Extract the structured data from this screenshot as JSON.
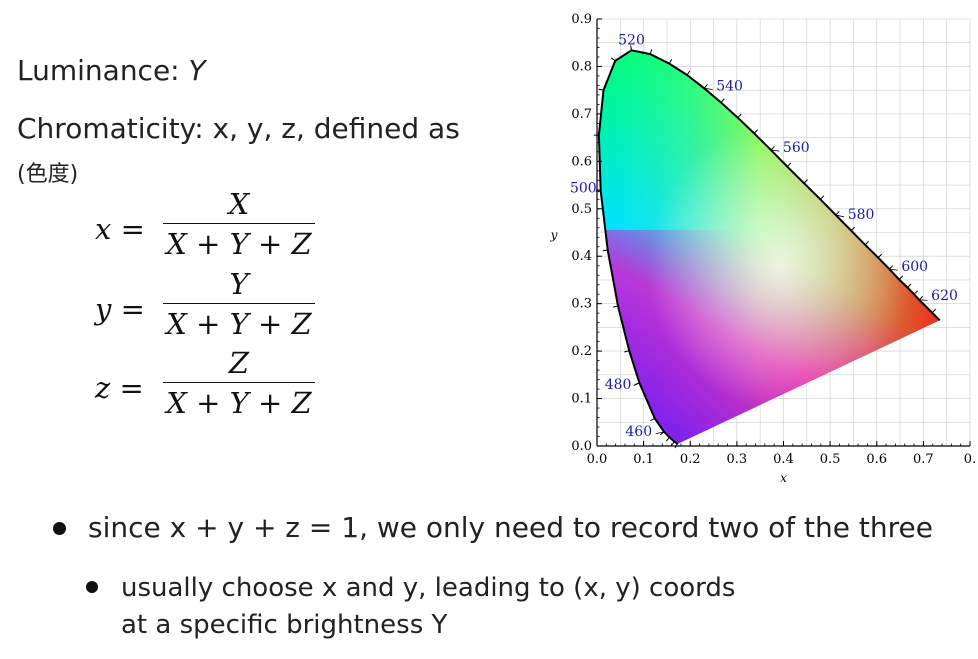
{
  "text": {
    "luminance_prefix": "Luminance: ",
    "luminance_var": "Y",
    "chromaticity": "Chromaticity: x, y, z, defined as",
    "cjk": "(色度)",
    "bullet1": "since x + y + z = 1, we only need to record two of the three",
    "bullet2_line1": "usually choose x and y, leading to (x, y) coords",
    "bullet2_line2": "at a specific brightness Y"
  },
  "equations": [
    {
      "lhs": "x =",
      "numerator": "X",
      "denominator": "X + Y + Z"
    },
    {
      "lhs": "y =",
      "numerator": "Y",
      "denominator": "X + Y + Z"
    },
    {
      "lhs": "z =",
      "numerator": "Z",
      "denominator": "X + Y + Z"
    }
  ],
  "chart_data": {
    "type": "scatter",
    "title": "",
    "xlabel": "x",
    "ylabel": "y",
    "xlim": [
      0,
      0.8
    ],
    "ylim": [
      0,
      0.9
    ],
    "x_ticks": [
      "0.0",
      "0.1",
      "0.2",
      "0.3",
      "0.4",
      "0.5",
      "0.6",
      "0.7",
      "0."
    ],
    "y_ticks": [
      "0.0",
      "0.1",
      "0.2",
      "0.3",
      "0.4",
      "0.5",
      "0.6",
      "0.7",
      "0.8",
      "0.9"
    ],
    "grid": true,
    "wavelength_labels": [
      {
        "label": "460",
        "x": 0.144,
        "y": 0.03
      },
      {
        "label": "480",
        "x": 0.091,
        "y": 0.133
      },
      {
        "label": "500",
        "x": 0.008,
        "y": 0.538
      },
      {
        "label": "520",
        "x": 0.074,
        "y": 0.834
      },
      {
        "label": "540",
        "x": 0.23,
        "y": 0.754
      },
      {
        "label": "560",
        "x": 0.373,
        "y": 0.624
      },
      {
        "label": "580",
        "x": 0.512,
        "y": 0.487
      },
      {
        "label": "600",
        "x": 0.627,
        "y": 0.373
      },
      {
        "label": "620",
        "x": 0.691,
        "y": 0.308
      }
    ],
    "locus": [
      [
        0.174,
        0.005
      ],
      [
        0.172,
        0.005
      ],
      [
        0.166,
        0.009
      ],
      [
        0.156,
        0.018
      ],
      [
        0.144,
        0.03
      ],
      [
        0.124,
        0.058
      ],
      [
        0.091,
        0.133
      ],
      [
        0.069,
        0.201
      ],
      [
        0.045,
        0.295
      ],
      [
        0.023,
        0.413
      ],
      [
        0.008,
        0.538
      ],
      [
        0.004,
        0.655
      ],
      [
        0.014,
        0.75
      ],
      [
        0.039,
        0.812
      ],
      [
        0.074,
        0.834
      ],
      [
        0.114,
        0.826
      ],
      [
        0.155,
        0.806
      ],
      [
        0.193,
        0.782
      ],
      [
        0.23,
        0.754
      ],
      [
        0.266,
        0.724
      ],
      [
        0.302,
        0.692
      ],
      [
        0.337,
        0.659
      ],
      [
        0.373,
        0.624
      ],
      [
        0.408,
        0.589
      ],
      [
        0.444,
        0.554
      ],
      [
        0.479,
        0.52
      ],
      [
        0.512,
        0.487
      ],
      [
        0.545,
        0.454
      ],
      [
        0.575,
        0.424
      ],
      [
        0.603,
        0.397
      ],
      [
        0.627,
        0.373
      ],
      [
        0.648,
        0.351
      ],
      [
        0.666,
        0.334
      ],
      [
        0.68,
        0.32
      ],
      [
        0.691,
        0.308
      ],
      [
        0.719,
        0.281
      ],
      [
        0.735,
        0.265
      ]
    ],
    "colors": {
      "axis": "#000000",
      "wavelength_label": "#1a1aa6",
      "grid": "#cccccc"
    }
  }
}
